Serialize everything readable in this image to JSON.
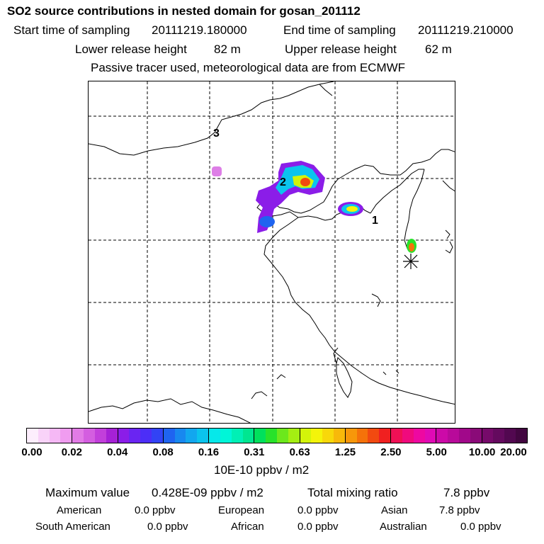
{
  "header": {
    "title": "SO2 source contributions in nested domain for gosan_201112",
    "start_label": "Start time of sampling",
    "start_value": "20111219.180000",
    "end_label": "End time of sampling",
    "end_value": "20111219.210000",
    "lower_label": "Lower release height",
    "lower_value": "82 m",
    "upper_label": "Upper release height",
    "upper_value": "62 m",
    "note": "Passive tracer used, meteorological data are from ECMWF"
  },
  "map": {
    "source_labels": [
      "1",
      "2",
      "3"
    ],
    "receptor": "gosan-receptor-star"
  },
  "legend": {
    "ticks": [
      "0.00",
      "0.02",
      "0.04",
      "0.08",
      "0.16",
      "0.31",
      "0.63",
      "1.25",
      "2.50",
      "5.00",
      "10.00",
      "20.00"
    ],
    "colors": [
      [
        "#fdeefd",
        "#f9d3f9",
        "#f5b8f5",
        "#f09cf0"
      ],
      [
        "#e27be6",
        "#d45ee0",
        "#c23fdb",
        "#a621d6"
      ],
      [
        "#8b1de8",
        "#6a25f2",
        "#4c2ef7",
        "#3243f5"
      ],
      [
        "#1f64f0",
        "#1888ef",
        "#12a7ef",
        "#0bc4ee"
      ],
      [
        "#06e8ea",
        "#00f6d8",
        "#00f0b5",
        "#00e690"
      ],
      [
        "#00e05c",
        "#28e22a",
        "#6ce81c",
        "#a4ee12"
      ],
      [
        "#d3f40a",
        "#f4f40a",
        "#f8d80a",
        "#f8b90a"
      ],
      [
        "#f7970a",
        "#f5720a",
        "#f24a10",
        "#f02020"
      ],
      [
        "#f01055",
        "#f00a7d",
        "#ee08a1",
        "#e00ab5"
      ],
      [
        "#cc0aa8",
        "#b80a9a",
        "#a1088a",
        "#8a0a78"
      ],
      [
        "#760a6a",
        "#640a5e",
        "#520850",
        "#420640"
      ]
    ],
    "unit": "10E-10 ppbv / m2"
  },
  "summary": {
    "max_label": "Maximum value",
    "max_value": "0.428E-09 ppbv / m2",
    "total_label": "Total mixing ratio",
    "total_value": "7.8 ppbv",
    "regions": [
      {
        "name": "American",
        "value": "0.0 ppbv"
      },
      {
        "name": "European",
        "value": "0.0 ppbv"
      },
      {
        "name": "Asian",
        "value": "7.8 ppbv"
      },
      {
        "name": "South American",
        "value": "0.0 ppbv"
      },
      {
        "name": "African",
        "value": "0.0 ppbv"
      },
      {
        "name": "Australian",
        "value": "0.0 ppbv"
      }
    ]
  }
}
